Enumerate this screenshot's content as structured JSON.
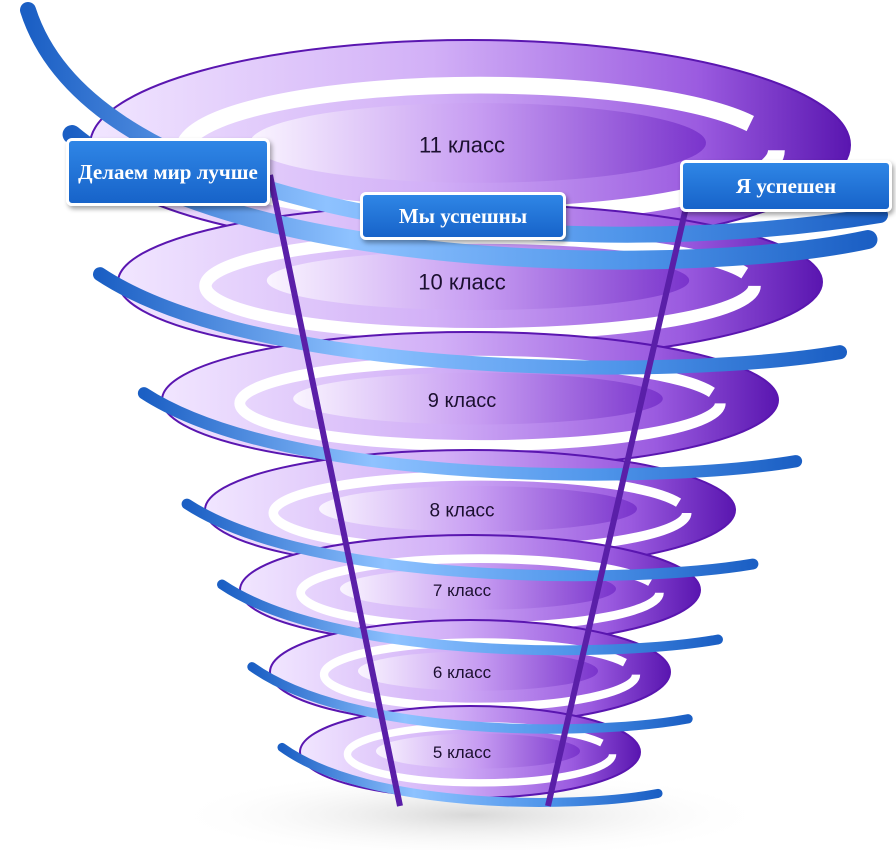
{
  "levels": [
    {
      "label": "11 класс"
    },
    {
      "label": "10 класс"
    },
    {
      "label": "9 класс"
    },
    {
      "label": "8 класс"
    },
    {
      "label": "7 класс"
    },
    {
      "label": "6 класс"
    },
    {
      "label": "5 класс"
    }
  ],
  "callouts": {
    "left": "Делаем мир лучше",
    "center": "Мы успешны",
    "right": "Я успешен"
  },
  "colors": {
    "purple_light": "#e4cdfb",
    "purple_mid": "#b47ee6",
    "purple_dark": "#6a1fc0",
    "ribbon_light": "#8ec2ff",
    "ribbon_dark": "#1b5fc4",
    "rod": "#5a1fa8",
    "callout_bg": "#1e6fd9"
  }
}
